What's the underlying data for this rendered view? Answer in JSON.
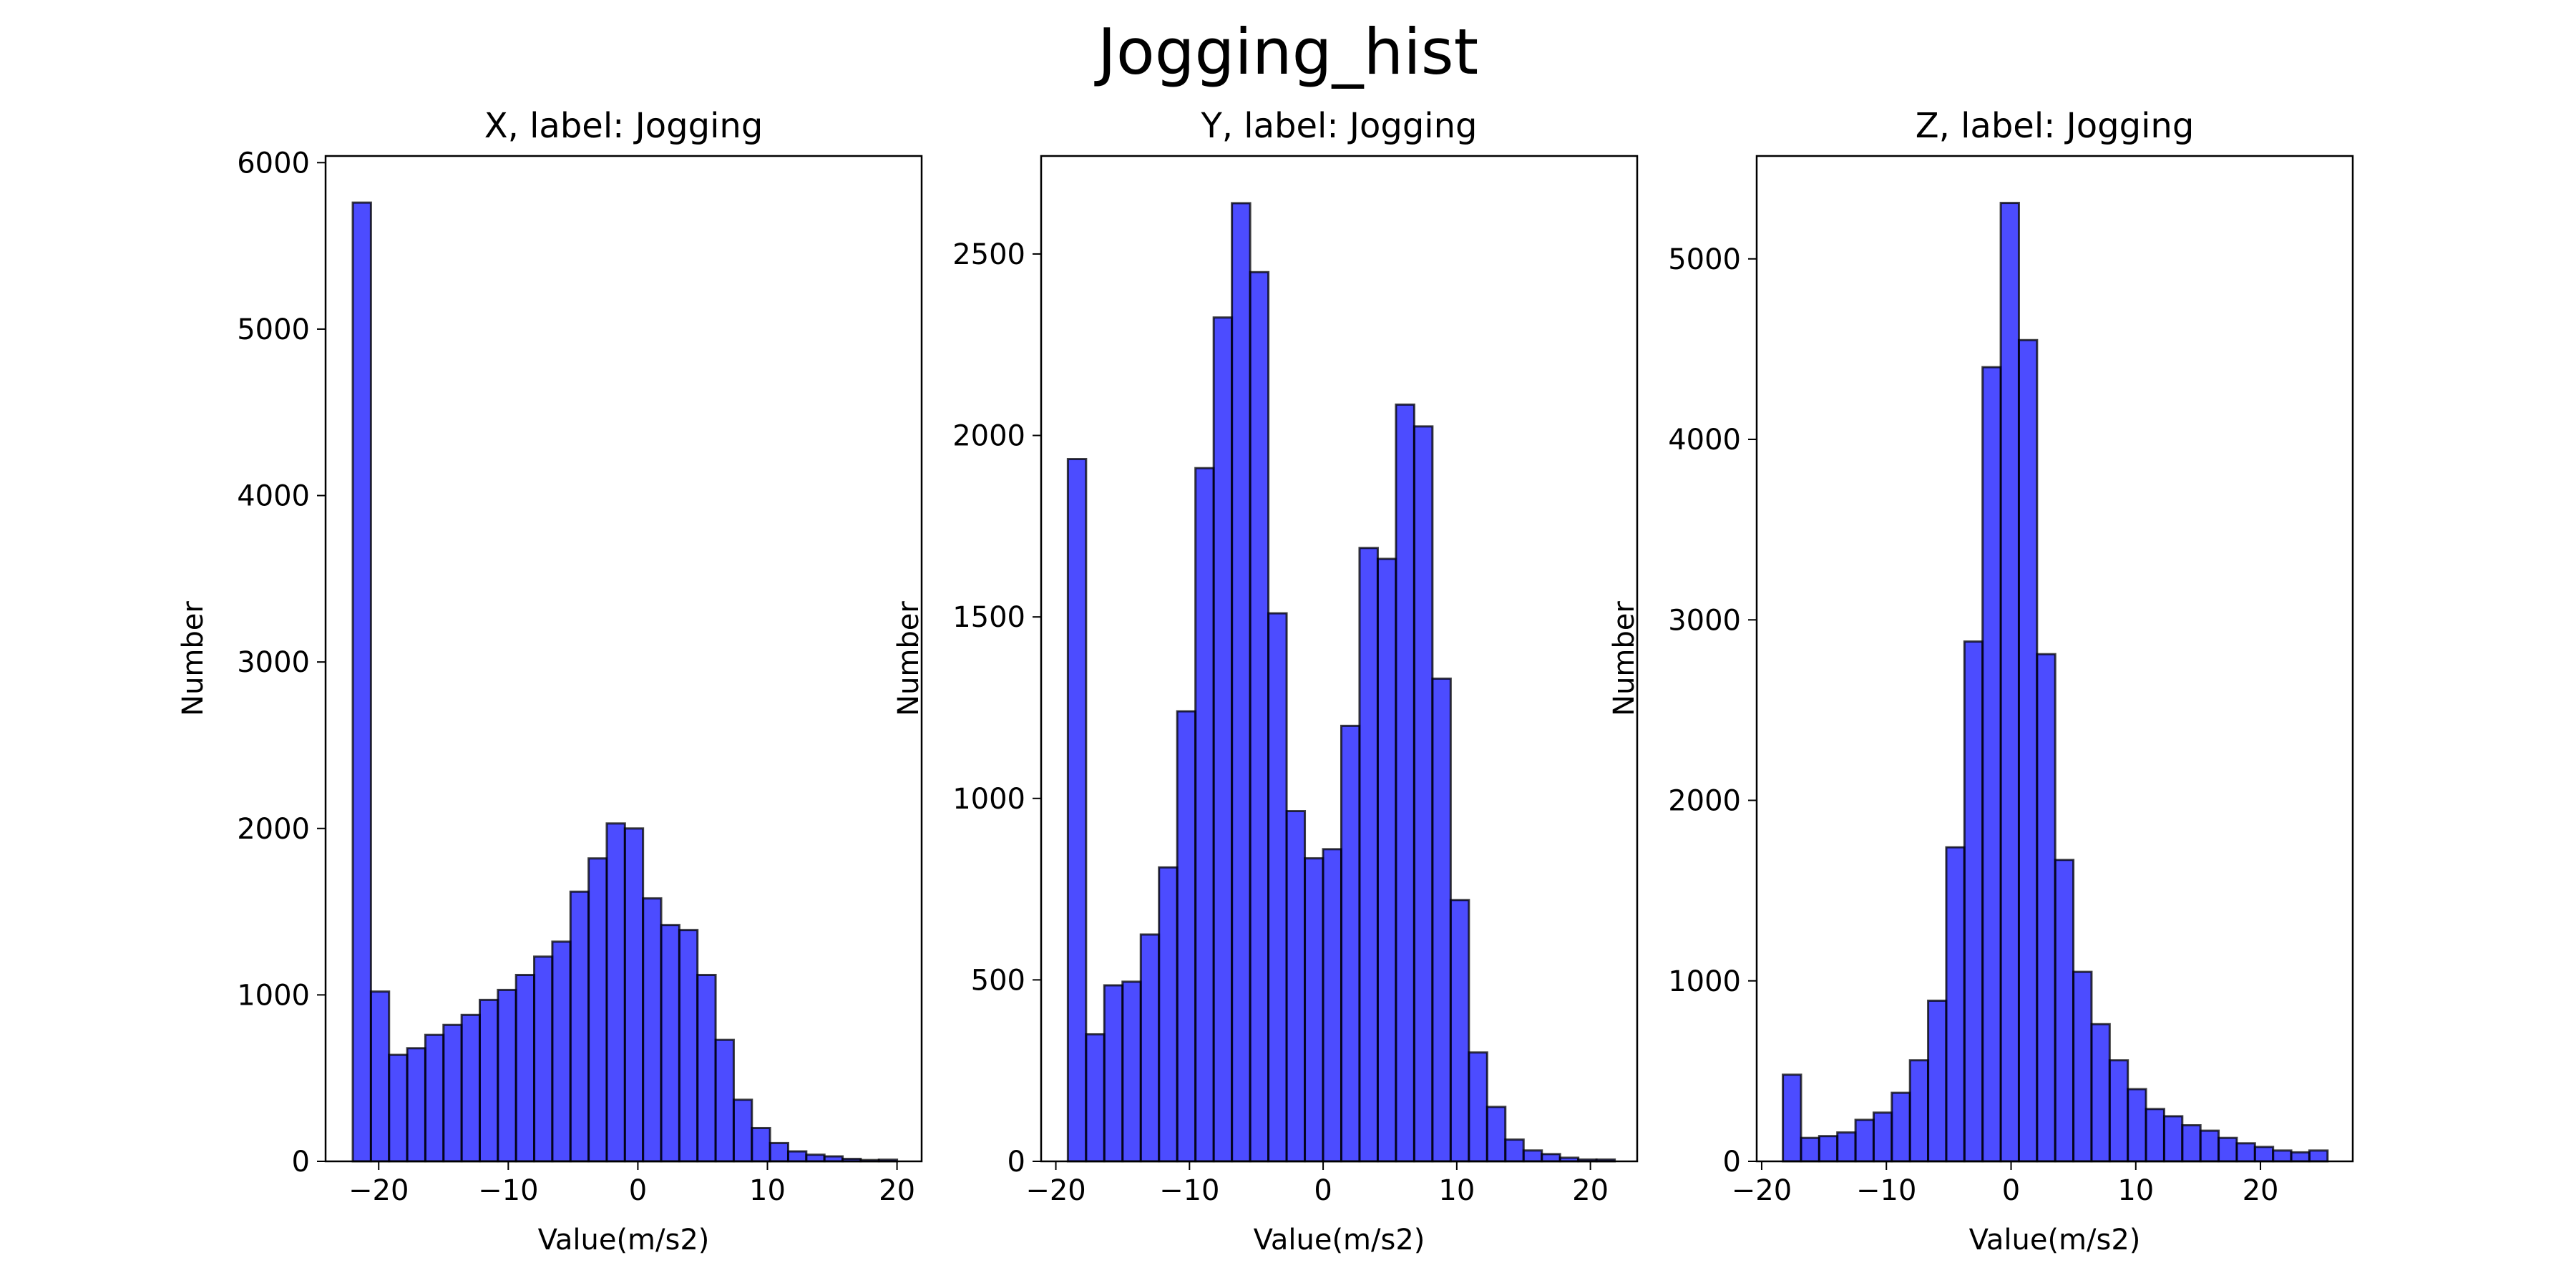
{
  "figure": {
    "title": "Jogging_hist"
  },
  "style": {
    "bar_fill": "#0000ff",
    "bar_opacity": 0.7,
    "bar_edge": "#000000",
    "background": "#ffffff"
  },
  "chart_data": [
    {
      "type": "bar",
      "title": "X, label: Jogging",
      "xlabel": "Value(m/s2)",
      "ylabel": "Number",
      "xlim": [
        -24.1,
        21.9
      ],
      "ylim": [
        0,
        6040
      ],
      "xticks": [
        -20,
        -10,
        0,
        10,
        20
      ],
      "xtick_labels": [
        "−20",
        "−10",
        "0",
        "10",
        "20"
      ],
      "yticks": [
        0,
        1000,
        2000,
        3000,
        4000,
        5000,
        6000
      ],
      "ytick_labels": [
        "0",
        "1000",
        "2000",
        "3000",
        "4000",
        "5000",
        "6000"
      ],
      "bin_start": -22.0,
      "bin_width": 1.4,
      "values": [
        5760,
        1020,
        640,
        680,
        760,
        820,
        880,
        970,
        1030,
        1120,
        1230,
        1320,
        1620,
        1820,
        2030,
        2000,
        1580,
        1420,
        1390,
        1120,
        730,
        370,
        200,
        110,
        60,
        40,
        30,
        15,
        8,
        10
      ]
    },
    {
      "type": "bar",
      "title": "Y, label: Jogging",
      "xlabel": "Value(m/s2)",
      "ylabel": "Number",
      "xlim": [
        -21.1,
        23.5
      ],
      "ylim": [
        0,
        2770
      ],
      "xticks": [
        -20,
        -10,
        0,
        10,
        20
      ],
      "xtick_labels": [
        "−20",
        "−10",
        "0",
        "10",
        "20"
      ],
      "yticks": [
        0,
        500,
        1000,
        1500,
        2000,
        2500
      ],
      "ytick_labels": [
        "0",
        "500",
        "1000",
        "1500",
        "2000",
        "2500"
      ],
      "bin_start": -19.1,
      "bin_width": 1.364,
      "values": [
        1935,
        350,
        485,
        495,
        625,
        810,
        1240,
        1910,
        2325,
        2640,
        2450,
        1510,
        965,
        835,
        860,
        1200,
        1690,
        1660,
        2085,
        2025,
        1330,
        720,
        300,
        150,
        60,
        30,
        20,
        10,
        5,
        5
      ]
    },
    {
      "type": "bar",
      "title": "Z, label: Jogging",
      "xlabel": "Value(m/s2)",
      "ylabel": "Number",
      "xlim": [
        -20.4,
        27.4
      ],
      "ylim": [
        0,
        5570
      ],
      "xticks": [
        -20,
        -10,
        0,
        10,
        20
      ],
      "xtick_labels": [
        "−20",
        "−10",
        "0",
        "10",
        "20"
      ],
      "yticks": [
        0,
        1000,
        2000,
        3000,
        4000,
        5000
      ],
      "ytick_labels": [
        "0",
        "1000",
        "2000",
        "3000",
        "4000",
        "5000"
      ],
      "bin_start": -18.3,
      "bin_width": 1.456,
      "values": [
        480,
        130,
        140,
        160,
        230,
        270,
        380,
        560,
        890,
        1740,
        2880,
        4400,
        5310,
        4550,
        2810,
        1670,
        1050,
        760,
        560,
        400,
        290,
        250,
        200,
        170,
        130,
        100,
        80,
        60,
        50,
        60
      ]
    }
  ]
}
